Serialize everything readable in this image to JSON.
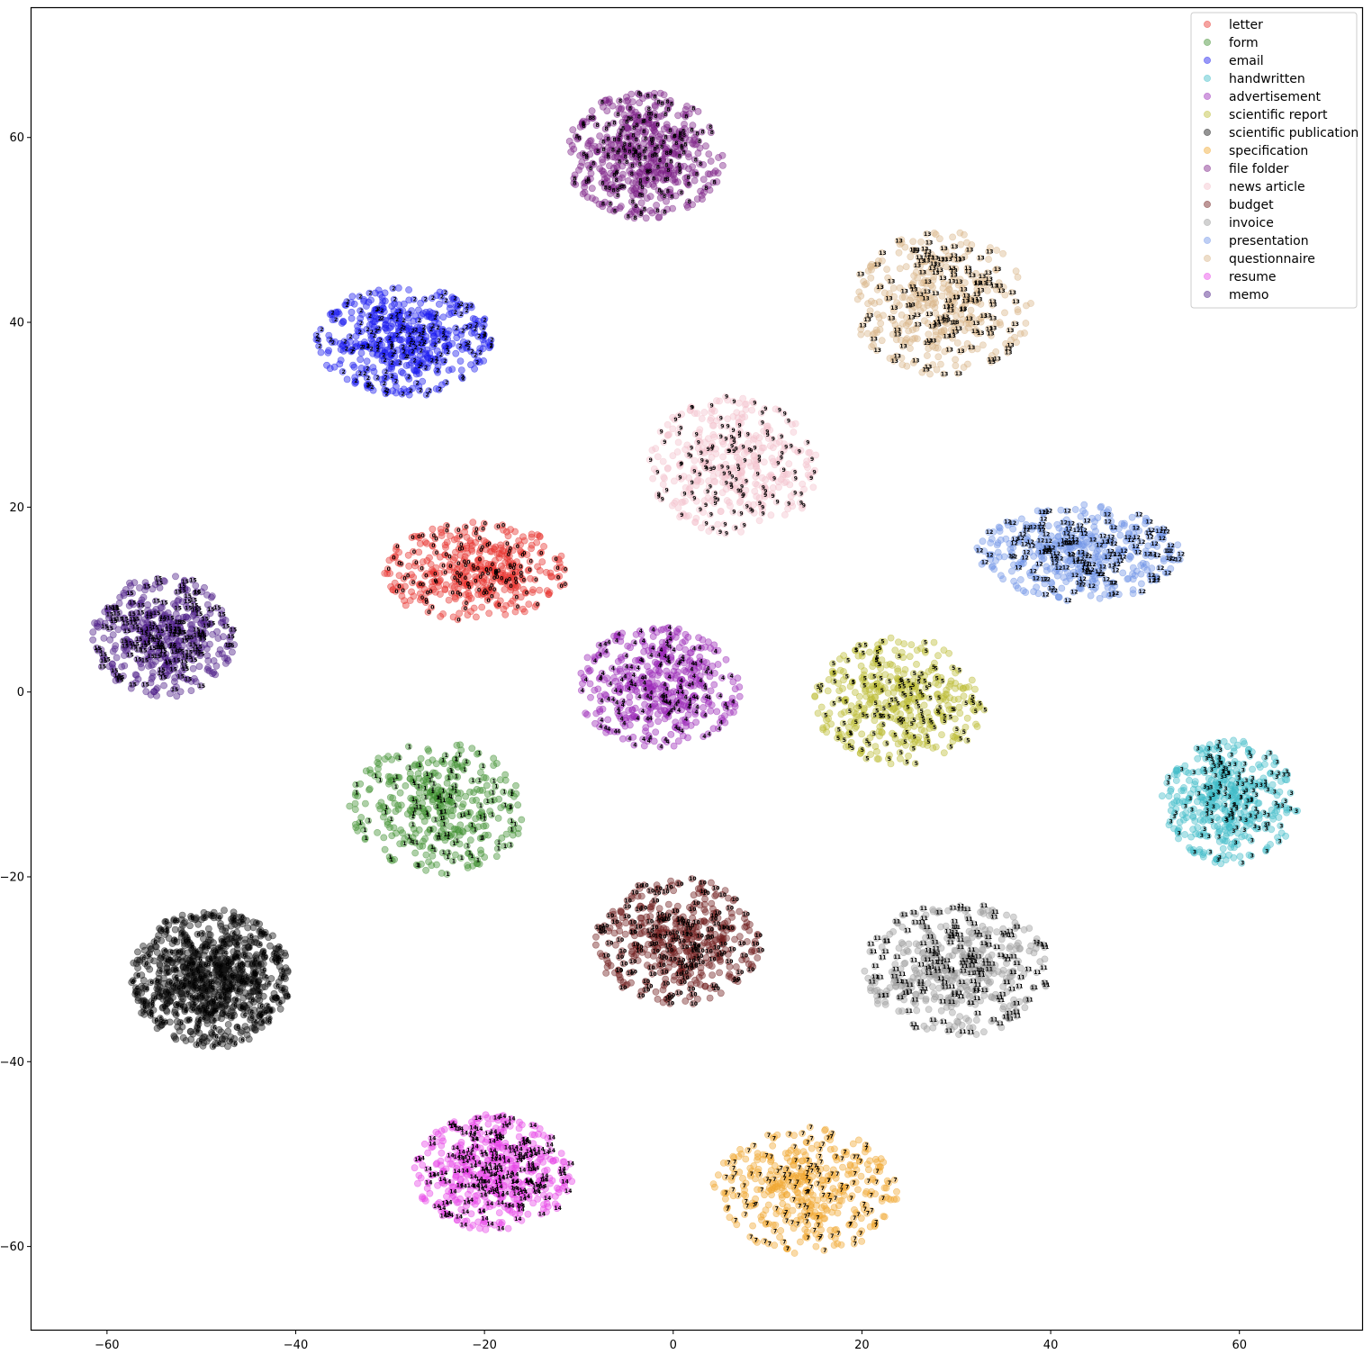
{
  "chart_data": {
    "type": "scatter",
    "title": "",
    "xlabel": "",
    "ylabel": "",
    "xlim": [
      -68,
      73
    ],
    "ylim": [
      -69,
      74
    ],
    "xticks": [
      -60,
      -40,
      -20,
      0,
      20,
      40,
      60
    ],
    "yticks": [
      -60,
      -40,
      -20,
      0,
      20,
      40,
      60
    ],
    "xtick_labels": [
      "−60",
      "−40",
      "−20",
      "0",
      "20",
      "40",
      "60"
    ],
    "ytick_labels": [
      "−60",
      "−40",
      "−20",
      "0",
      "20",
      "40",
      "60"
    ],
    "grid": false,
    "legend_position": "top-right",
    "series": [
      {
        "name": "letter",
        "cluster_id": "0",
        "color": "#e8322d",
        "center": [
          -21,
          13
        ],
        "spread": [
          6.5,
          3.6
        ],
        "count": 430
      },
      {
        "name": "form",
        "cluster_id": "1",
        "color": "#3f8f2f",
        "center": [
          -25,
          -12.5
        ],
        "spread": [
          6.2,
          4.8
        ],
        "count": 400
      },
      {
        "name": "email",
        "cluster_id": "2",
        "color": "#1a1aee",
        "center": [
          -28.5,
          38
        ],
        "spread": [
          6.2,
          4.0
        ],
        "count": 520
      },
      {
        "name": "handwritten",
        "cluster_id": "3",
        "color": "#40bcc8",
        "center": [
          59,
          -12
        ],
        "spread": [
          4.8,
          4.5
        ],
        "count": 450
      },
      {
        "name": "advertisement",
        "cluster_id": "4",
        "color": "#9a28b8",
        "center": [
          -1.5,
          0.5
        ],
        "spread": [
          5.8,
          4.4
        ],
        "count": 470
      },
      {
        "name": "scientific report",
        "cluster_id": "5",
        "color": "#bcbc35",
        "center": [
          24,
          -1
        ],
        "spread": [
          6.0,
          4.6
        ],
        "count": 430
      },
      {
        "name": "scientific publication",
        "cluster_id": "6",
        "color": "#111111",
        "center": [
          -49,
          -31
        ],
        "spread": [
          5.6,
          5.0
        ],
        "count": 900
      },
      {
        "name": "specification",
        "cluster_id": "7",
        "color": "#f0a830",
        "center": [
          14,
          -54
        ],
        "spread": [
          6.5,
          4.6
        ],
        "count": 430
      },
      {
        "name": "file folder",
        "cluster_id": "8",
        "color": "#7c1f86",
        "center": [
          -3,
          58
        ],
        "spread": [
          5.6,
          4.6
        ],
        "count": 560
      },
      {
        "name": "news article",
        "cluster_id": "9",
        "color": "#f4c2cc",
        "center": [
          6.5,
          24.5
        ],
        "spread": [
          6.0,
          5.0
        ],
        "count": 430
      },
      {
        "name": "budget",
        "cluster_id": "10",
        "color": "#6e1a1a",
        "center": [
          0.5,
          -27
        ],
        "spread": [
          5.8,
          4.6
        ],
        "count": 470
      },
      {
        "name": "invoice",
        "cluster_id": "11",
        "color": "#9a9a9a",
        "center": [
          30,
          -30
        ],
        "spread": [
          6.6,
          4.8
        ],
        "count": 520
      },
      {
        "name": "presentation",
        "cluster_id": "12",
        "color": "#6f93e6",
        "center": [
          43,
          15
        ],
        "spread": [
          7.2,
          3.5
        ],
        "count": 480
      },
      {
        "name": "questionnaire",
        "cluster_id": "13",
        "color": "#d8b488",
        "center": [
          28.5,
          42
        ],
        "spread": [
          6.4,
          5.2
        ],
        "count": 440
      },
      {
        "name": "resume",
        "cluster_id": "14",
        "color": "#e844e8",
        "center": [
          -19,
          -52
        ],
        "spread": [
          5.6,
          4.2
        ],
        "count": 560
      },
      {
        "name": "memo",
        "cluster_id": "15",
        "color": "#4a1a86",
        "center": [
          -54,
          6
        ],
        "spread": [
          5.0,
          4.4
        ],
        "count": 480
      }
    ]
  }
}
